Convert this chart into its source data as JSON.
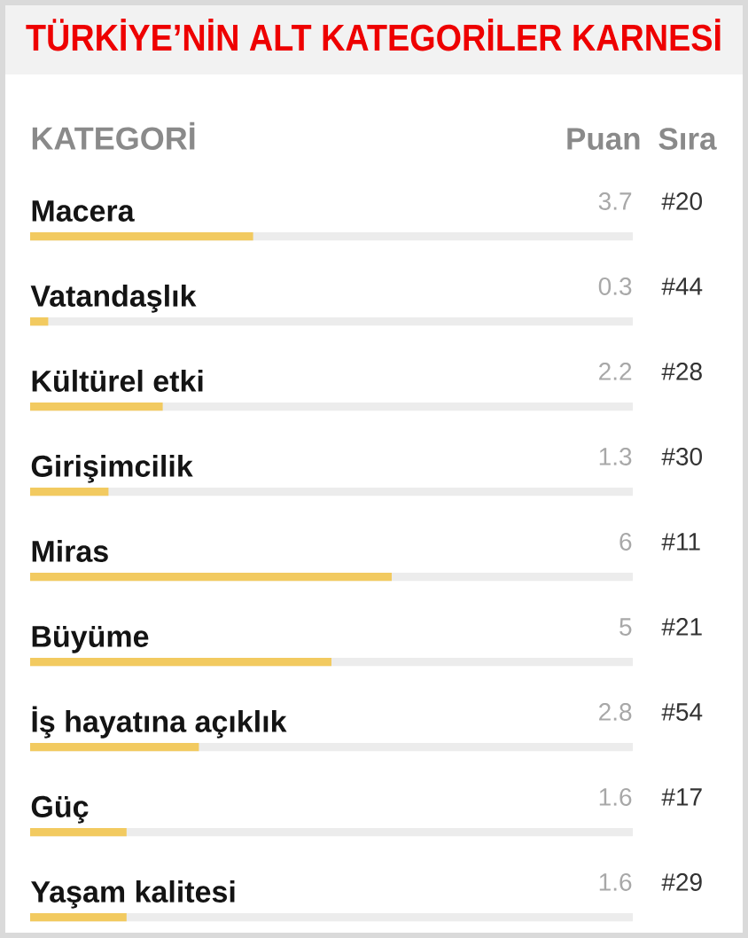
{
  "chart_data": {
    "type": "bar",
    "orientation": "horizontal",
    "title": "TÜRKİYE’NİN ALT KATEGORİLER KARNESİ",
    "ylabel": "KATEGORİ",
    "xlabel": "Puan",
    "categories": [
      "Macera",
      "Vatandaşlık",
      "Kültürel etki",
      "Girişimcilik",
      "Miras",
      "Büyüme",
      "İş hayatına açıklık",
      "Güç",
      "Yaşam kalitesi"
    ],
    "values": [
      3.7,
      0.3,
      2.2,
      1.3,
      6,
      5,
      2.8,
      1.6,
      1.6
    ],
    "color": "#f2ca60",
    "xlim": [
      0,
      10
    ],
    "data_labels": true,
    "tick_labels": "y",
    "annotations": [
      "Sıra",
      "#20",
      "#44",
      "#28",
      "#30",
      "#11",
      "#21",
      "#54",
      "#17",
      "#29"
    ]
  }
}
